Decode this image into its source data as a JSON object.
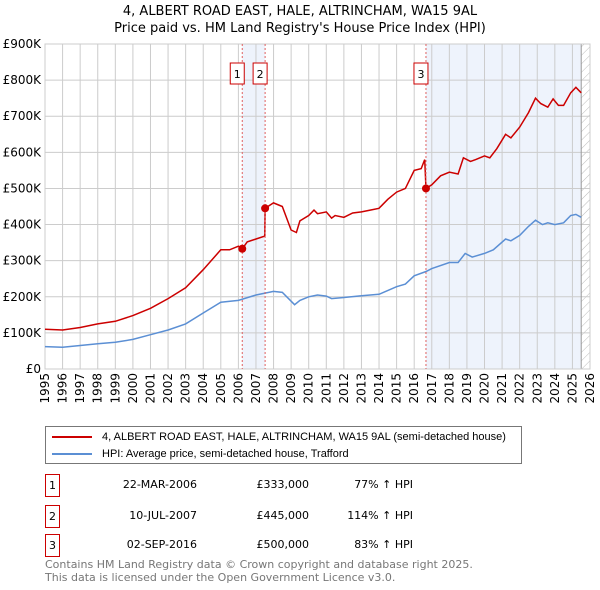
{
  "chart_data": {
    "type": "line",
    "title": "4, ALBERT ROAD EAST, HALE, ALTRINCHAM, WA15 9AL",
    "subtitle": "Price paid vs. HM Land Registry's House Price Index (HPI)",
    "xlabel": "",
    "ylabel": "",
    "xlim": [
      1995,
      2026
    ],
    "ylim": [
      0,
      900000
    ],
    "y_ticks": [
      {
        "v": 0,
        "label": "£0"
      },
      {
        "v": 100000,
        "label": "£100K"
      },
      {
        "v": 200000,
        "label": "£200K"
      },
      {
        "v": 300000,
        "label": "£300K"
      },
      {
        "v": 400000,
        "label": "£400K"
      },
      {
        "v": 500000,
        "label": "£500K"
      },
      {
        "v": 600000,
        "label": "£600K"
      },
      {
        "v": 700000,
        "label": "£700K"
      },
      {
        "v": 800000,
        "label": "£800K"
      },
      {
        "v": 900000,
        "label": "£900K"
      }
    ],
    "x_ticks": [
      "1995",
      "1996",
      "1997",
      "1998",
      "1999",
      "2000",
      "2001",
      "2002",
      "2003",
      "2004",
      "2005",
      "2006",
      "2007",
      "2008",
      "2009",
      "2010",
      "2011",
      "2012",
      "2013",
      "2014",
      "2015",
      "2016",
      "2017",
      "2018",
      "2019",
      "2020",
      "2021",
      "2022",
      "2023",
      "2024",
      "2025",
      "2026"
    ],
    "grid": true,
    "shaded_ranges": [
      [
        2006.22,
        2007.52
      ],
      [
        2016.67,
        2025.5
      ]
    ],
    "forecast_hatch_from": 2025.5,
    "series": [
      {
        "name": "4, ALBERT ROAD EAST, HALE, ALTRINCHAM, WA15 9AL (semi-detached house)",
        "color": "#cc0000",
        "x": [
          1995,
          1996,
          1997,
          1998,
          1999,
          2000,
          2001,
          2002,
          2003,
          2004,
          2005,
          2005.5,
          2006,
          2006.22,
          2006.5,
          2007,
          2007.5,
          2007.52,
          2008,
          2008.5,
          2009,
          2009.3,
          2009.5,
          2010,
          2010.3,
          2010.5,
          2011,
          2011.3,
          2011.5,
          2012,
          2012.5,
          2013,
          2013.5,
          2014,
          2014.5,
          2015,
          2015.5,
          2016,
          2016.4,
          2016.6,
          2016.67,
          2017,
          2017.5,
          2018,
          2018.5,
          2018.8,
          2019.2,
          2019.5,
          2020,
          2020.3,
          2020.7,
          2021.2,
          2021.5,
          2022,
          2022.5,
          2022.9,
          2023.2,
          2023.6,
          2023.9,
          2024.2,
          2024.5,
          2024.9,
          2025.2,
          2025.5
        ],
        "y": [
          110000,
          108000,
          115000,
          125000,
          132000,
          148000,
          168000,
          195000,
          225000,
          275000,
          330000,
          330000,
          340000,
          333000,
          352000,
          360000,
          368000,
          445000,
          460000,
          450000,
          385000,
          378000,
          410000,
          425000,
          440000,
          430000,
          435000,
          418000,
          425000,
          420000,
          432000,
          435000,
          440000,
          445000,
          470000,
          490000,
          500000,
          550000,
          555000,
          580000,
          500000,
          510000,
          535000,
          545000,
          540000,
          585000,
          575000,
          580000,
          590000,
          585000,
          610000,
          650000,
          640000,
          670000,
          710000,
          750000,
          735000,
          725000,
          748000,
          730000,
          730000,
          765000,
          780000,
          765000
        ]
      },
      {
        "name": "HPI: Average price, semi-detached house, Trafford",
        "color": "#5b8fd4",
        "x": [
          1995,
          1996,
          1997,
          1998,
          1999,
          2000,
          2001,
          2002,
          2003,
          2004,
          2005,
          2006,
          2007,
          2008,
          2008.5,
          2009.2,
          2009.5,
          2010,
          2010.5,
          2011,
          2011.3,
          2012,
          2013,
          2014,
          2015,
          2015.5,
          2016,
          2016.67,
          2017,
          2018,
          2018.5,
          2018.9,
          2019.3,
          2020,
          2020.5,
          2021.2,
          2021.5,
          2022,
          2022.5,
          2022.9,
          2023.3,
          2023.6,
          2024,
          2024.5,
          2024.9,
          2025.2,
          2025.5
        ],
        "y": [
          62000,
          60000,
          65000,
          70000,
          74000,
          82000,
          95000,
          108000,
          125000,
          155000,
          185000,
          190000,
          205000,
          215000,
          212000,
          178000,
          190000,
          200000,
          205000,
          202000,
          195000,
          198000,
          203000,
          207000,
          228000,
          235000,
          258000,
          270000,
          278000,
          295000,
          295000,
          320000,
          310000,
          320000,
          330000,
          360000,
          355000,
          370000,
          395000,
          412000,
          400000,
          405000,
          400000,
          405000,
          425000,
          428000,
          420000
        ]
      }
    ],
    "sales": [
      {
        "id": "1",
        "x": 2006.22,
        "value": 333000,
        "date": "22-MAR-2006",
        "price": "£333,000",
        "hpi": "77% ↑ HPI"
      },
      {
        "id": "2",
        "x": 2007.52,
        "value": 445000,
        "date": "10-JUL-2007",
        "price": "£445,000",
        "hpi": "114% ↑ HPI"
      },
      {
        "id": "3",
        "x": 2016.67,
        "value": 500000,
        "date": "02-SEP-2016",
        "price": "£500,000",
        "hpi": "83% ↑ HPI"
      }
    ],
    "legend_position": "below"
  },
  "footer": {
    "line1": "Contains HM Land Registry data © Crown copyright and database right 2025.",
    "line2": "This data is licensed under the Open Government Licence v3.0."
  }
}
